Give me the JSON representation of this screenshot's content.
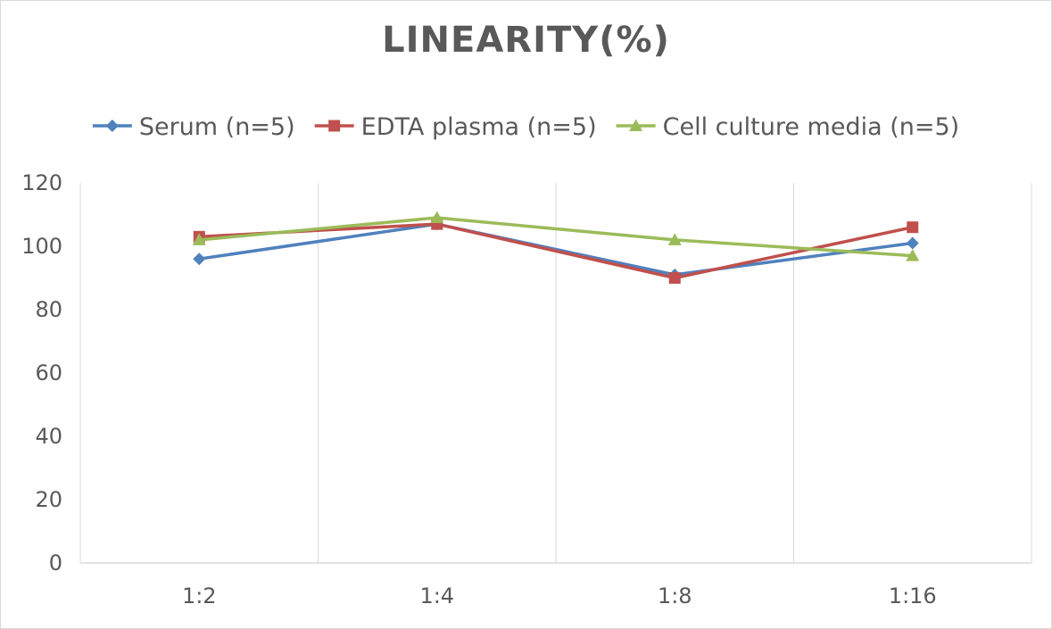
{
  "chart_data": {
    "type": "line",
    "title": "LINEARITY(%)",
    "xlabel": "",
    "ylabel": "",
    "categories": [
      "1:2",
      "1:4",
      "1:8",
      "1:16"
    ],
    "ylim": [
      0,
      120
    ],
    "yticks": [
      0,
      20,
      40,
      60,
      80,
      100,
      120
    ],
    "grid": "vertical",
    "legend_position": "top",
    "series": [
      {
        "name": "Serum (n=5)",
        "values": [
          96,
          107,
          91,
          101
        ],
        "color": "#4F81BD",
        "marker": "diamond"
      },
      {
        "name": "EDTA plasma (n=5)",
        "values": [
          103,
          107,
          90,
          106
        ],
        "color": "#C0504D",
        "marker": "square"
      },
      {
        "name": "Cell culture media (n=5)",
        "values": [
          102,
          109,
          102,
          97
        ],
        "color": "#9BBB59",
        "marker": "triangle"
      }
    ]
  }
}
